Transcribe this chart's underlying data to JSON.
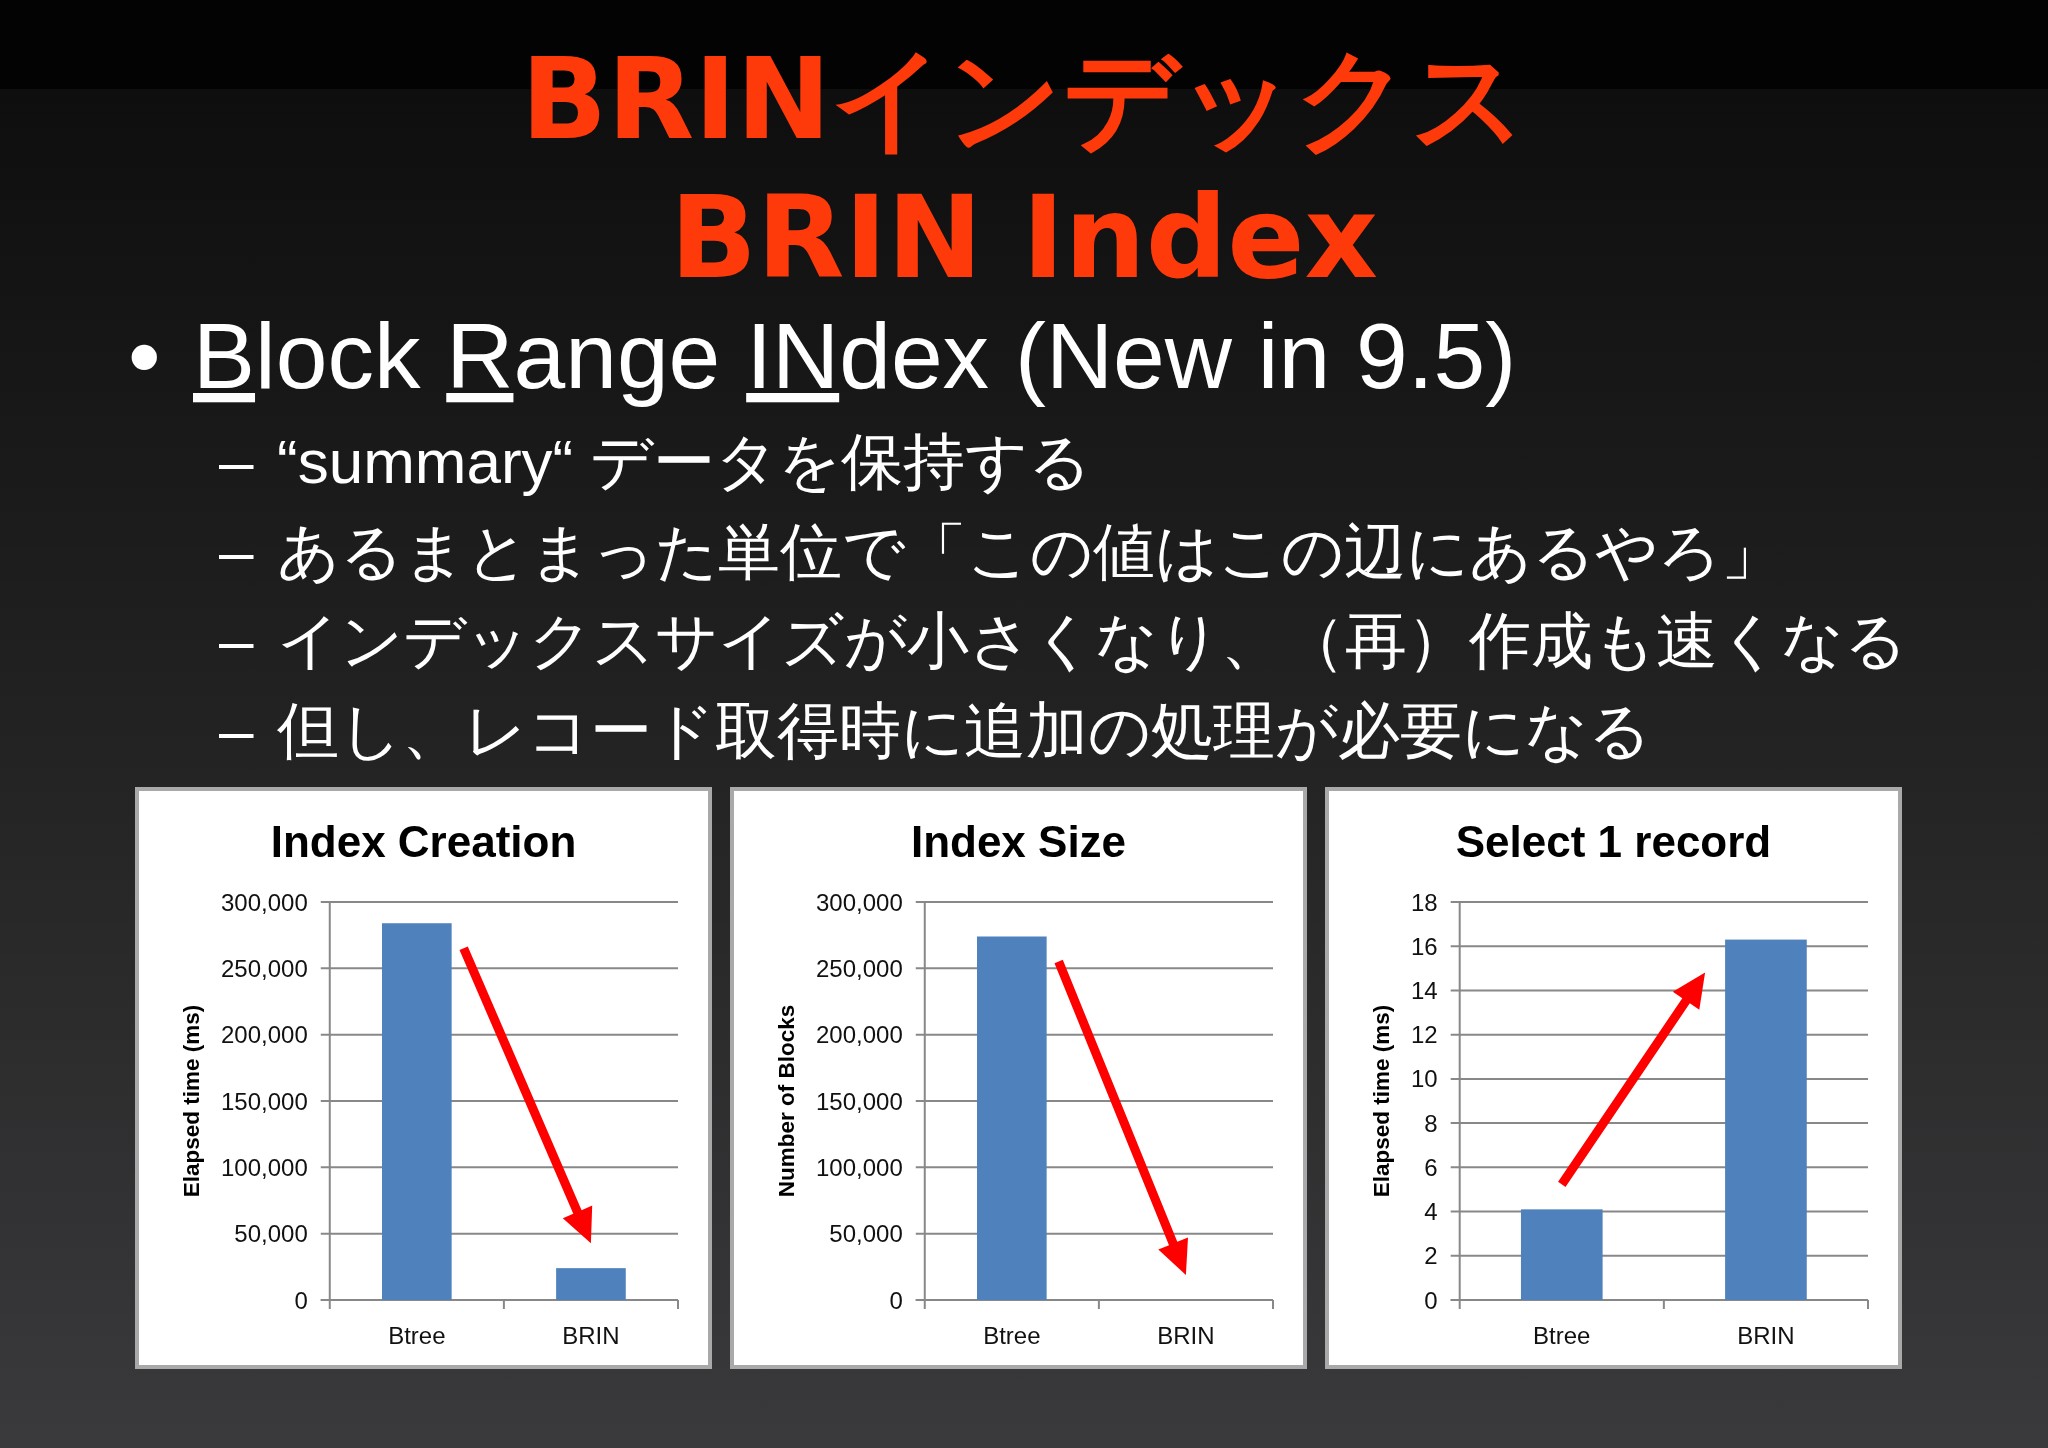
{
  "chart_data": [
    {
      "type": "other",
      "title": "BRINインデックス",
      "subtitle": "BRIN Index",
      "annotations": [
        "• Block Range INdex (New in 9.5)",
        "– “summary“ データを保持する",
        "– あるまとまった単位で「この値はこの辺にあるやろ」",
        "– インデックスサイズが小さくなり、（再）作成も速くなる",
        "– 但し、レコード取得時に追加の処理が必要になる"
      ]
    },
    {
      "type": "bar",
      "title": "Index Creation",
      "ylabel": "Elapsed time (ms)",
      "categories": [
        "Btree",
        "BRIN"
      ],
      "values": [
        284000,
        24000
      ],
      "color": "#4f81bd",
      "ylim": [
        0,
        300000
      ],
      "yticks": [
        0,
        {
          "value": 50000,
          "label": "50,000"
        },
        {
          "value": 100000,
          "label": "100,000"
        },
        {
          "value": 150000,
          "label": "150,000"
        },
        {
          "value": 200000,
          "label": "200,000"
        },
        {
          "value": 250000,
          "label": "250,000"
        },
        {
          "value": 300000,
          "label": "300,000"
        }
      ],
      "grid": "y"
    },
    {
      "type": "bar",
      "title": "Index Size",
      "ylabel": "Number of Blocks",
      "categories": [
        "Btree",
        "BRIN"
      ],
      "values": [
        274000,
        0
      ],
      "color": "#4f81bd",
      "ylim": [
        0,
        300000
      ],
      "yticks": [
        0,
        {
          "value": 50000,
          "label": "50,000"
        },
        {
          "value": 100000,
          "label": "100,000"
        },
        {
          "value": 150000,
          "label": "150,000"
        },
        {
          "value": 200000,
          "label": "200,000"
        },
        {
          "value": 250000,
          "label": "250,000"
        },
        {
          "value": 300000,
          "label": "300,000"
        }
      ],
      "grid": "y"
    },
    {
      "type": "bar",
      "title": "Select 1 record",
      "ylabel": "Elapsed time (ms)",
      "categories": [
        "Btree",
        "BRIN"
      ],
      "values": [
        4.1,
        16.3
      ],
      "color": "#4f81bd",
      "ylim": [
        0,
        18
      ],
      "yticks": [
        0,
        2,
        4,
        6,
        8,
        10,
        12,
        14,
        16,
        18
      ],
      "grid": "y"
    }
  ]
}
